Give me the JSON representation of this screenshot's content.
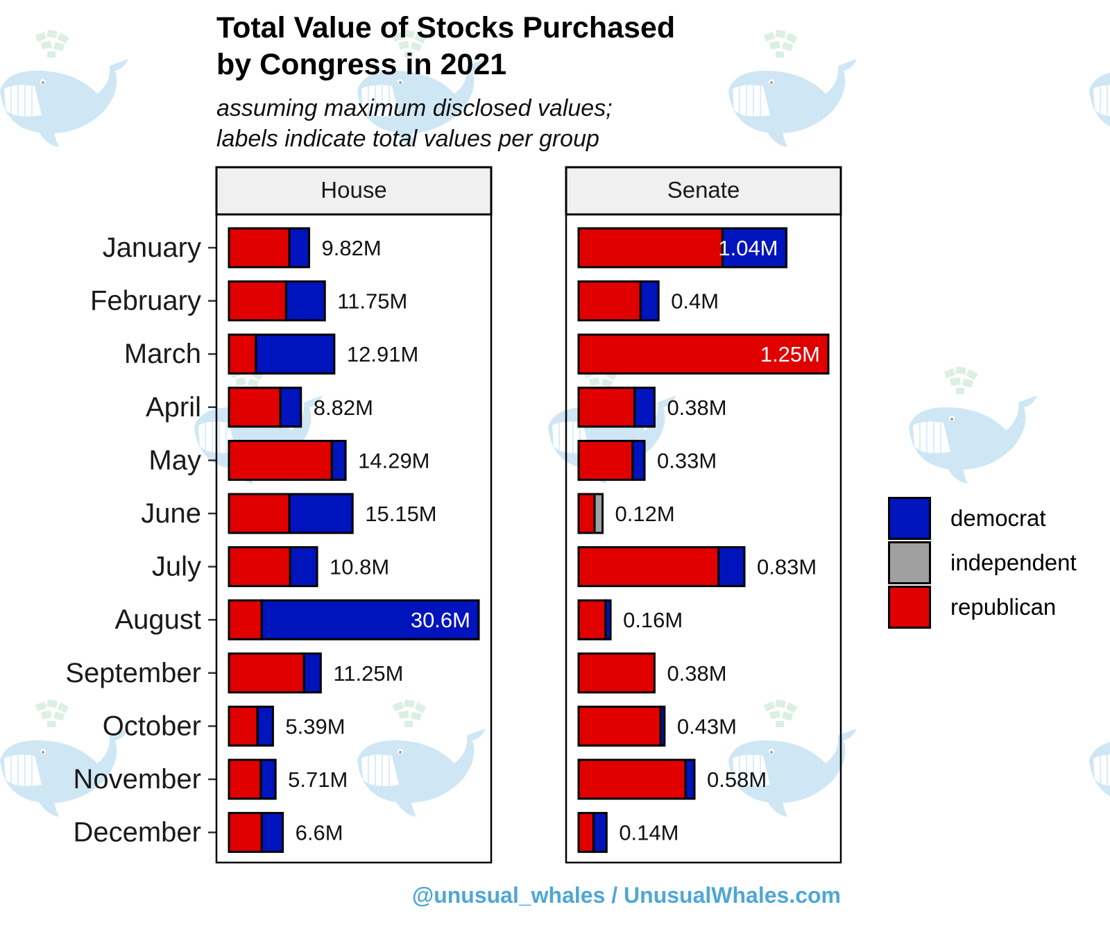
{
  "watermark": {
    "icon": "whale-money-spout-icon",
    "brand_color": "#a9d4ec"
  },
  "header": {
    "title_line1": "Total Value of Stocks Purchased",
    "title_line2": "by Congress in 2021",
    "subtitle_line1": "assuming maximum disclosed values;",
    "subtitle_line2": "labels indicate total values per group"
  },
  "footer": {
    "credit": "@unusual_whales / UnusualWhales.com",
    "color": "#4ea7d6"
  },
  "legend": {
    "items": [
      {
        "label": "democrat",
        "color": "#0014bd"
      },
      {
        "label": "independent",
        "color": "#a0a0a0"
      },
      {
        "label": "republican",
        "color": "#e00000"
      }
    ]
  },
  "chart_data": {
    "type": "bar",
    "orientation": "horizontal",
    "stacked": true,
    "title": "Total Value of Stocks Purchased by Congress in 2021",
    "subtitle": "assuming maximum disclosed values; labels indicate total values per group",
    "xlabel": "",
    "ylabel": "",
    "unit": "M USD",
    "categories": [
      "January",
      "February",
      "March",
      "April",
      "May",
      "June",
      "July",
      "August",
      "September",
      "October",
      "November",
      "December"
    ],
    "legend_position": "right",
    "grid": false,
    "panels": [
      {
        "name": "House",
        "xlim": [
          0,
          32.13
        ],
        "series": [
          {
            "name": "republican",
            "color": "#e00000",
            "values": [
              7.4,
              7.0,
              3.3,
              6.3,
              12.6,
              7.4,
              7.5,
              4.0,
              9.2,
              3.5,
              3.9,
              4.0
            ]
          },
          {
            "name": "independent",
            "color": "#a0a0a0",
            "values": [
              0,
              0,
              0,
              0,
              0,
              0,
              0,
              0,
              0,
              0,
              0,
              0
            ]
          },
          {
            "name": "democrat",
            "color": "#0014bd",
            "values": [
              2.42,
              4.75,
              9.61,
              2.52,
              1.69,
              7.75,
              3.3,
              26.6,
              2.05,
              1.89,
              1.81,
              2.6
            ]
          }
        ],
        "totals": [
          9.82,
          11.75,
          12.91,
          8.82,
          14.29,
          15.15,
          10.8,
          30.6,
          11.25,
          5.39,
          5.71,
          6.6
        ],
        "labels": [
          "9.82M",
          "11.75M",
          "12.91M",
          "8.82M",
          "14.29M",
          "15.15M",
          "10.8M",
          "30.6M",
          "11.25M",
          "5.39M",
          "5.71M",
          "6.6M"
        ]
      },
      {
        "name": "Senate",
        "xlim": [
          0,
          1.3125
        ],
        "series": [
          {
            "name": "republican",
            "color": "#e00000",
            "values": [
              0.72,
              0.31,
              1.25,
              0.28,
              0.27,
              0.08,
              0.7,
              0.135,
              0.38,
              0.41,
              0.535,
              0.075
            ]
          },
          {
            "name": "independent",
            "color": "#a0a0a0",
            "values": [
              0,
              0,
              0,
              0,
              0,
              0.04,
              0,
              0,
              0,
              0,
              0,
              0
            ]
          },
          {
            "name": "democrat",
            "color": "#0014bd",
            "values": [
              0.32,
              0.09,
              0,
              0.1,
              0.06,
              0,
              0.13,
              0.025,
              0,
              0.02,
              0.045,
              0.065
            ]
          }
        ],
        "totals": [
          1.04,
          0.4,
          1.25,
          0.38,
          0.33,
          0.12,
          0.83,
          0.16,
          0.38,
          0.43,
          0.58,
          0.14
        ],
        "labels": [
          "1.04M",
          "0.4M",
          "1.25M",
          "0.38M",
          "0.33M",
          "0.12M",
          "0.83M",
          "0.16M",
          "0.38M",
          "0.43M",
          "0.58M",
          "0.14M"
        ]
      }
    ]
  }
}
